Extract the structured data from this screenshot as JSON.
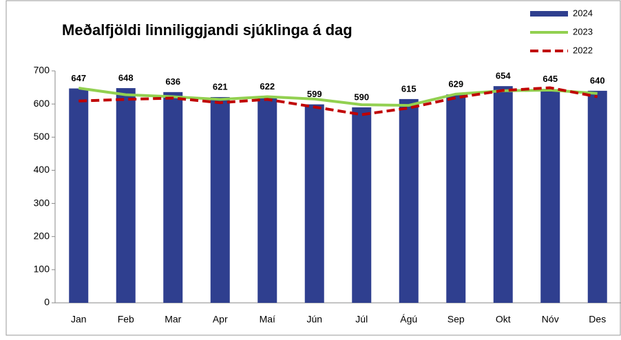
{
  "chart_data": {
    "type": "bar",
    "title": "Meðalfjöldi linniliggjandi sjúklinga á dag",
    "categories": [
      "Jan",
      "Feb",
      "Mar",
      "Apr",
      "Maí",
      "Jún",
      "Júl",
      "Ágú",
      "Sep",
      "Okt",
      "Nóv",
      "Des"
    ],
    "series": [
      {
        "name": "2024",
        "type": "bar",
        "color": "#2f3f8f",
        "values": [
          647,
          648,
          636,
          621,
          622,
          599,
          590,
          615,
          629,
          654,
          645,
          640
        ]
      },
      {
        "name": "2023",
        "type": "line",
        "color": "#92d050",
        "values": [
          648,
          628,
          622,
          614,
          622,
          615,
          598,
          596,
          630,
          640,
          642,
          632
        ]
      },
      {
        "name": "2022",
        "type": "line",
        "color": "#c00000",
        "dashed": true,
        "values": [
          609,
          614,
          618,
          604,
          614,
          591,
          568,
          588,
          619,
          641,
          649,
          622
        ]
      }
    ],
    "ylim": [
      0,
      700
    ],
    "yticks": [
      0,
      100,
      200,
      300,
      400,
      500,
      600,
      700
    ],
    "legend": "top-right"
  }
}
